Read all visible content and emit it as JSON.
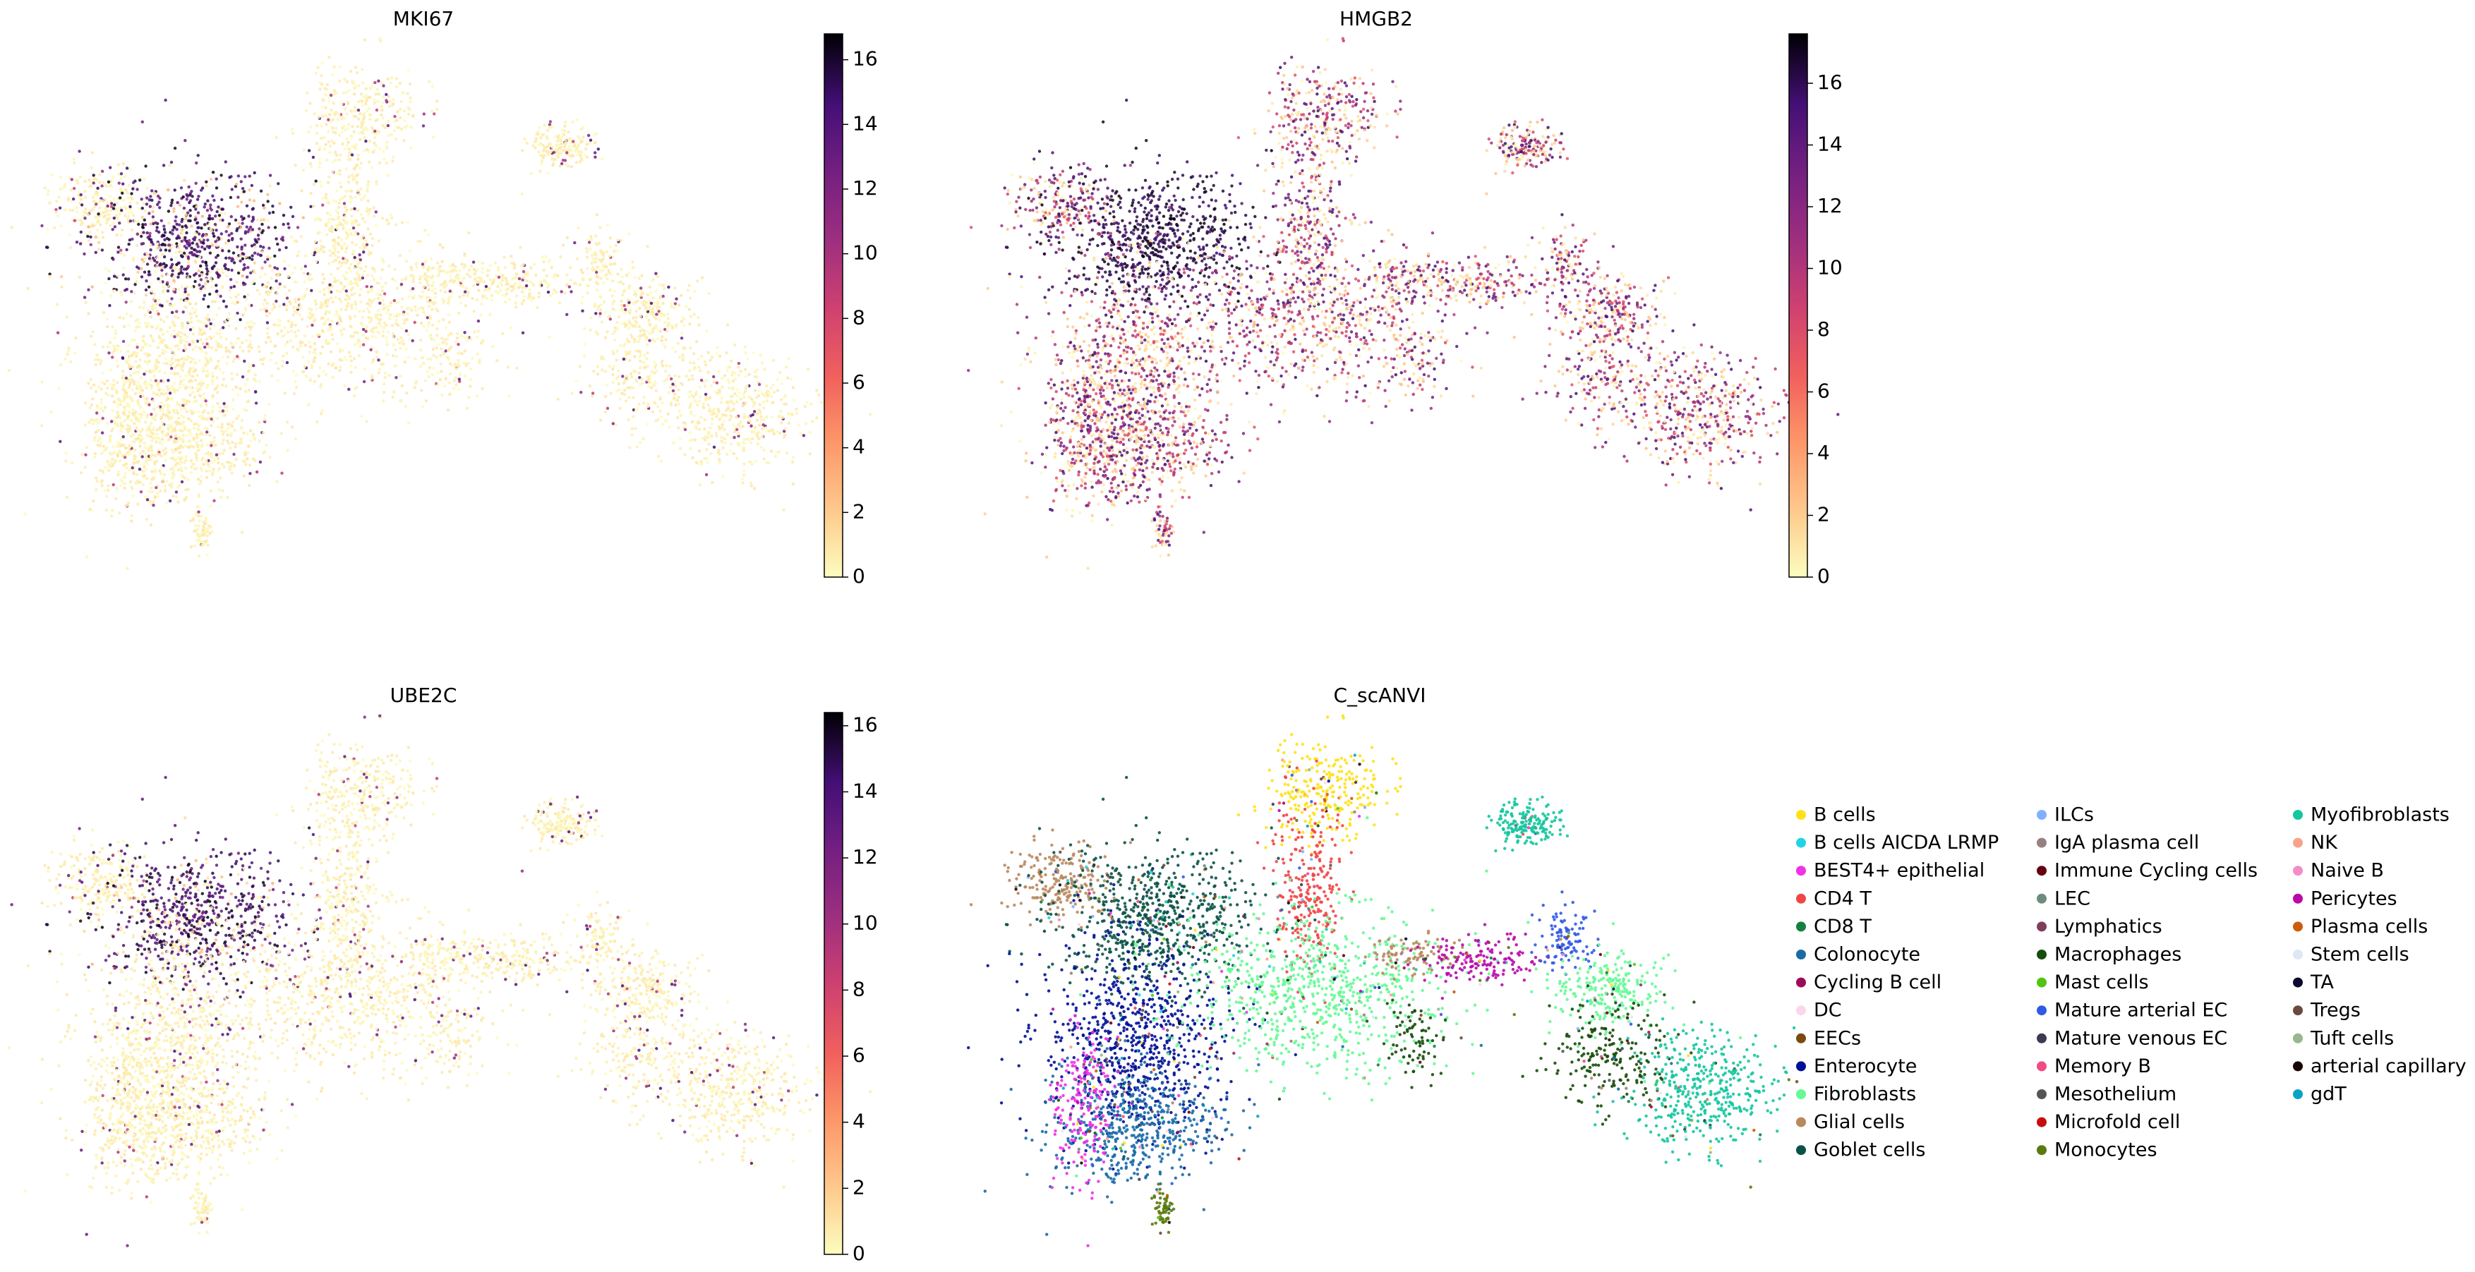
{
  "chart_data": [
    {
      "type": "scatter",
      "title": "MKI67",
      "colormap": "magma_r",
      "colorbar": {
        "min": 0,
        "max": 16.8,
        "ticks": [
          0,
          2,
          4,
          6,
          8,
          10,
          12,
          14,
          16
        ]
      },
      "high_region": "upper-left",
      "grid": false
    },
    {
      "type": "scatter",
      "title": "HMGB2",
      "colormap": "magma_r",
      "colorbar": {
        "min": 0,
        "max": 17.6,
        "ticks": [
          0,
          2,
          4,
          6,
          8,
          10,
          12,
          14,
          16
        ]
      },
      "high_region": "broad",
      "grid": false
    },
    {
      "type": "scatter",
      "title": "UBE2C",
      "colormap": "magma_r",
      "colorbar": {
        "min": 0,
        "max": 16.4,
        "ticks": [
          0,
          2,
          4,
          6,
          8,
          10,
          12,
          14,
          16
        ]
      },
      "high_region": "upper-left",
      "grid": false
    },
    {
      "type": "scatter",
      "title": "C_scANVI",
      "legend_position": "right",
      "grid": false,
      "categories": [
        {
          "name": "B cells",
          "color": "#ffe119"
        },
        {
          "name": "B cells AICDA LRMP",
          "color": "#22d3e6"
        },
        {
          "name": "BEST4+ epithelial",
          "color": "#f032e6"
        },
        {
          "name": "CD4 T",
          "color": "#f04646"
        },
        {
          "name": "CD8 T",
          "color": "#12803e"
        },
        {
          "name": "Colonocyte",
          "color": "#1a6aa8"
        },
        {
          "name": "Cycling B cell",
          "color": "#9e0a5a"
        },
        {
          "name": "DC",
          "color": "#fcd6ec"
        },
        {
          "name": "EECs",
          "color": "#7a4a0e"
        },
        {
          "name": "Enterocyte",
          "color": "#000f96"
        },
        {
          "name": "Fibroblasts",
          "color": "#66fa96"
        },
        {
          "name": "Glial cells",
          "color": "#b8885e"
        },
        {
          "name": "Goblet cells",
          "color": "#0a5247"
        },
        {
          "name": "ILCs",
          "color": "#80b0ff"
        },
        {
          "name": "IgA plasma cell",
          "color": "#998080"
        },
        {
          "name": "Immune Cycling cells",
          "color": "#64000f"
        },
        {
          "name": "LEC",
          "color": "#6d8c7e"
        },
        {
          "name": "Lymphatics",
          "color": "#823d5e"
        },
        {
          "name": "Macrophages",
          "color": "#174d0a"
        },
        {
          "name": "Mast cells",
          "color": "#52c414"
        },
        {
          "name": "Mature arterial EC",
          "color": "#3259e6"
        },
        {
          "name": "Mature venous EC",
          "color": "#3d3a52"
        },
        {
          "name": "Memory B",
          "color": "#f04b82"
        },
        {
          "name": "Mesothelium",
          "color": "#555555"
        },
        {
          "name": "Microfold cell",
          "color": "#c70e0e"
        },
        {
          "name": "Monocytes",
          "color": "#5a7a0a"
        },
        {
          "name": "Myofibroblasts",
          "color": "#14c79e"
        },
        {
          "name": "NK",
          "color": "#f7a38a"
        },
        {
          "name": "Naive B",
          "color": "#f58cc7"
        },
        {
          "name": "Pericytes",
          "color": "#b80aa8"
        },
        {
          "name": "Plasma cells",
          "color": "#cc5c0a"
        },
        {
          "name": "Stem cells",
          "color": "#dde8f4"
        },
        {
          "name": "TA",
          "color": "#0a0a2e"
        },
        {
          "name": "Tregs",
          "color": "#6b4a3e"
        },
        {
          "name": "Tuft cells",
          "color": "#95b88e"
        },
        {
          "name": "arterial capillary",
          "color": "#1a0505"
        },
        {
          "name": "gdT",
          "color": "#0aa3c7"
        }
      ]
    }
  ]
}
